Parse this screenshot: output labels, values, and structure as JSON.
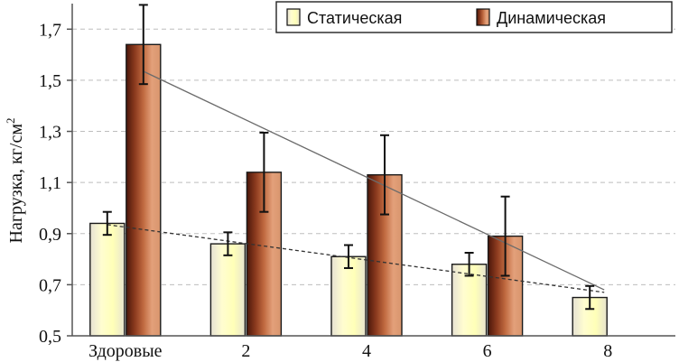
{
  "chart_data": {
    "type": "bar",
    "categories": [
      "Здоровые",
      "2",
      "4",
      "6",
      "8"
    ],
    "series": [
      {
        "name": "Статическая",
        "values": [
          0.94,
          0.86,
          0.81,
          0.78,
          0.65
        ],
        "error": [
          0.045,
          0.045,
          0.045,
          0.045,
          0.045
        ],
        "fill_stops": [
          "#e6e1d3",
          "#fffdd0",
          "#ffffb8",
          "#e8e4cf"
        ]
      },
      {
        "name": "Динамическая",
        "values": [
          1.64,
          1.14,
          1.13,
          0.89,
          null
        ],
        "error": [
          0.155,
          0.155,
          0.155,
          0.155,
          null
        ],
        "fill_stops": [
          "#4a160a",
          "#8b3a1e",
          "#c06a40",
          "#e3a07a",
          "#d8956d"
        ]
      }
    ],
    "trendlines": [
      {
        "series": "Динамическая",
        "style": "solid",
        "color": "#6b6b6b",
        "start": 1.535,
        "end": 0.68
      },
      {
        "series": "Статическая",
        "style": "dashed",
        "color": "#333333",
        "start": 0.935,
        "end": 0.67
      }
    ],
    "ylabel_prefix": "Нагрузка, кг/см",
    "ylabel_sup": "2",
    "xlabel": "",
    "ylim": [
      0.5,
      1.8
    ],
    "yticks": [
      "0,5",
      "0,7",
      "0,9",
      "1,1",
      "1,3",
      "1,5",
      "1,7"
    ],
    "ytick_values": [
      0.5,
      0.7,
      0.9,
      1.1,
      1.3,
      1.5,
      1.7
    ],
    "grid": true,
    "legend_position": "top-right"
  }
}
